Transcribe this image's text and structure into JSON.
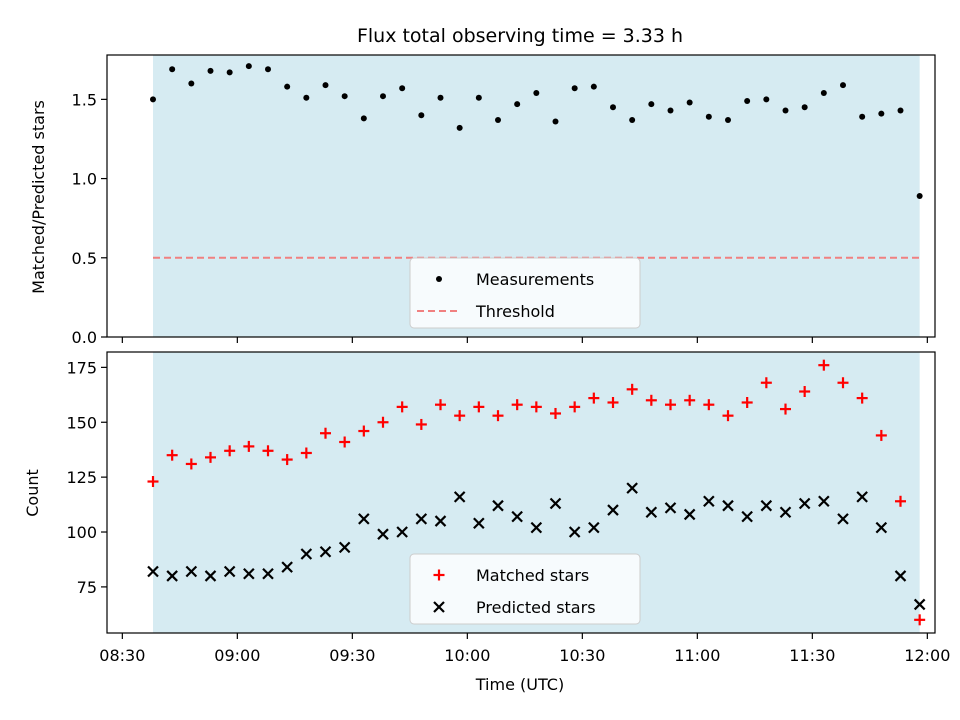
{
  "chart_data": [
    {
      "type": "scatter",
      "title": "Flux total observing time = 3.33 h",
      "xlabel": "",
      "ylabel": "Matched/Predicted stars",
      "xlim": [
        "08:26",
        "12:02"
      ],
      "ylim": [
        0,
        1.78
      ],
      "x_ticks": [
        "08:30",
        "09:00",
        "09:30",
        "10:00",
        "10:30",
        "11:00",
        "11:30",
        "12:00"
      ],
      "y_ticks": [
        "0.0",
        "0.5",
        "1.0",
        "1.5"
      ],
      "shaded_region": {
        "x_start": "08:38",
        "x_end": "11:58",
        "color": "#add8e6"
      },
      "legend_position": "lower-center",
      "grid": false,
      "series": [
        {
          "name": "Measurements",
          "marker": "dot",
          "color": "#000000",
          "x": [
            "08:38",
            "08:43",
            "08:48",
            "08:53",
            "08:58",
            "09:03",
            "09:08",
            "09:13",
            "09:18",
            "09:23",
            "09:28",
            "09:33",
            "09:38",
            "09:43",
            "09:48",
            "09:53",
            "09:58",
            "10:03",
            "10:08",
            "10:13",
            "10:18",
            "10:23",
            "10:28",
            "10:33",
            "10:38",
            "10:43",
            "10:48",
            "10:53",
            "10:58",
            "11:03",
            "11:08",
            "11:13",
            "11:18",
            "11:23",
            "11:28",
            "11:33",
            "11:38",
            "11:43",
            "11:48",
            "11:53",
            "11:58"
          ],
          "y": [
            1.5,
            1.69,
            1.6,
            1.68,
            1.67,
            1.71,
            1.69,
            1.58,
            1.51,
            1.59,
            1.52,
            1.38,
            1.52,
            1.57,
            1.4,
            1.51,
            1.32,
            1.51,
            1.37,
            1.47,
            1.54,
            1.36,
            1.57,
            1.58,
            1.45,
            1.37,
            1.47,
            1.43,
            1.48,
            1.39,
            1.37,
            1.49,
            1.5,
            1.43,
            1.45,
            1.54,
            1.59,
            1.39,
            1.41,
            1.43,
            0.89
          ]
        },
        {
          "name": "Threshold",
          "marker": "dashed-line",
          "color": "#f08080",
          "value": 0.5
        }
      ]
    },
    {
      "type": "scatter",
      "title": "",
      "xlabel": "Time (UTC)",
      "ylabel": "Count",
      "xlim": [
        "08:26",
        "12:02"
      ],
      "ylim": [
        54,
        182
      ],
      "x_ticks": [
        "08:30",
        "09:00",
        "09:30",
        "10:00",
        "10:30",
        "11:00",
        "11:30",
        "12:00"
      ],
      "y_ticks": [
        "75",
        "100",
        "125",
        "150",
        "175"
      ],
      "shaded_region": {
        "x_start": "08:38",
        "x_end": "11:58",
        "color": "#add8e6"
      },
      "legend_position": "lower-center",
      "grid": false,
      "series": [
        {
          "name": "Matched stars",
          "marker": "plus",
          "color": "#ff0000",
          "x": [
            "08:38",
            "08:43",
            "08:48",
            "08:53",
            "08:58",
            "09:03",
            "09:08",
            "09:13",
            "09:18",
            "09:23",
            "09:28",
            "09:33",
            "09:38",
            "09:43",
            "09:48",
            "09:53",
            "09:58",
            "10:03",
            "10:08",
            "10:13",
            "10:18",
            "10:23",
            "10:28",
            "10:33",
            "10:38",
            "10:43",
            "10:48",
            "10:53",
            "10:58",
            "11:03",
            "11:08",
            "11:13",
            "11:18",
            "11:23",
            "11:28",
            "11:33",
            "11:38",
            "11:43",
            "11:48",
            "11:53",
            "11:58"
          ],
          "y": [
            123,
            135,
            131,
            134,
            137,
            139,
            137,
            133,
            136,
            145,
            141,
            146,
            150,
            157,
            149,
            158,
            153,
            157,
            153,
            158,
            157,
            154,
            157,
            161,
            159,
            165,
            160,
            158,
            160,
            158,
            153,
            159,
            168,
            156,
            164,
            176,
            168,
            161,
            144,
            114,
            60
          ]
        },
        {
          "name": "Predicted stars",
          "marker": "x",
          "color": "#000000",
          "x": [
            "08:38",
            "08:43",
            "08:48",
            "08:53",
            "08:58",
            "09:03",
            "09:08",
            "09:13",
            "09:18",
            "09:23",
            "09:28",
            "09:33",
            "09:38",
            "09:43",
            "09:48",
            "09:53",
            "09:58",
            "10:03",
            "10:08",
            "10:13",
            "10:18",
            "10:23",
            "10:28",
            "10:33",
            "10:38",
            "10:43",
            "10:48",
            "10:53",
            "10:58",
            "11:03",
            "11:08",
            "11:13",
            "11:18",
            "11:23",
            "11:28",
            "11:33",
            "11:38",
            "11:43",
            "11:48",
            "11:53",
            "11:58"
          ],
          "y": [
            82,
            80,
            82,
            80,
            82,
            81,
            81,
            84,
            90,
            91,
            93,
            106,
            99,
            100,
            106,
            105,
            116,
            104,
            112,
            107,
            102,
            113,
            100,
            102,
            110,
            120,
            109,
            111,
            108,
            114,
            112,
            107,
            112,
            109,
            113,
            114,
            106,
            116,
            102,
            80,
            67
          ]
        }
      ]
    }
  ]
}
